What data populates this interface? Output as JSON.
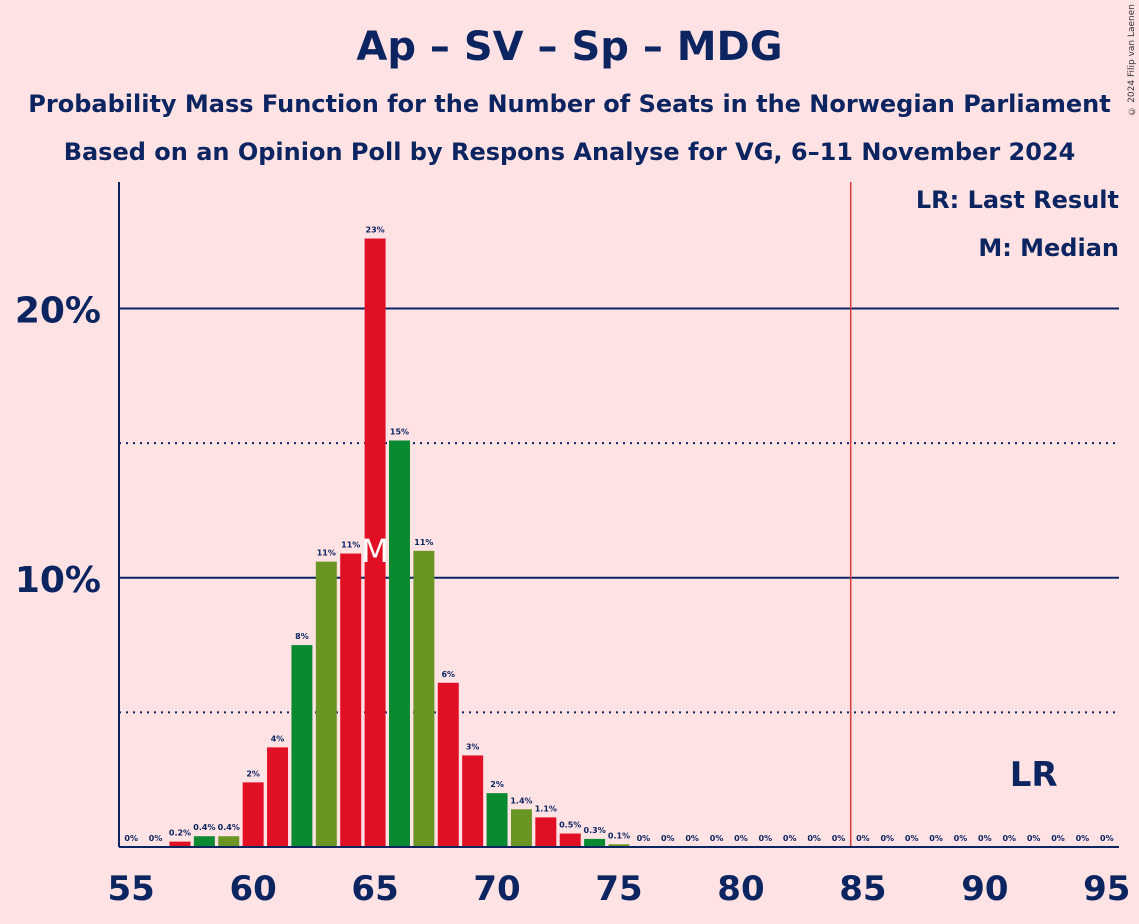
{
  "header": {
    "title": "Ap – SV – Sp – MDG",
    "subtitle1": "Probability Mass Function for the Number of Seats in the Norwegian Parliament",
    "subtitle2": "Based on an Opinion Poll by Respons Analyse for VG, 6–11 November 2024",
    "copyright": "© 2024 Filip van Laenen"
  },
  "legend": {
    "last_result": "LR: Last Result",
    "median": "M: Median"
  },
  "colors": {
    "background": "#ffe2e4",
    "text": "#0c2561",
    "red": "#e00f23",
    "green": "#098a30",
    "olive": "#6b9523",
    "majority_line": "#d43a3a"
  },
  "chart_data": {
    "type": "bar",
    "x": [
      55,
      56,
      57,
      58,
      59,
      60,
      61,
      62,
      63,
      64,
      65,
      66,
      67,
      68,
      69,
      70,
      71,
      72,
      73,
      74,
      75,
      76,
      77,
      78,
      79,
      80,
      81,
      82,
      83,
      84,
      85,
      86,
      87,
      88,
      89,
      90,
      91,
      92,
      93,
      94,
      95
    ],
    "values": [
      0,
      0,
      0.2,
      0.4,
      0.4,
      2.4,
      3.7,
      7.5,
      10.6,
      10.9,
      22.6,
      15.1,
      11.0,
      6.1,
      3.4,
      2.0,
      1.4,
      1.1,
      0.5,
      0.3,
      0.1,
      0,
      0,
      0,
      0,
      0,
      0,
      0,
      0,
      0,
      0,
      0,
      0,
      0,
      0,
      0,
      0,
      0,
      0,
      0,
      0
    ],
    "labels": [
      "0%",
      "0%",
      "0.2%",
      "0.4%",
      "0.4%",
      "2%",
      "4%",
      "8%",
      "11%",
      "11%",
      "23%",
      "15%",
      "11%",
      "6%",
      "3%",
      "2%",
      "1.4%",
      "1.1%",
      "0.5%",
      "0.3%",
      "0.1%",
      "0%",
      "0%",
      "0%",
      "0%",
      "0%",
      "0%",
      "0%",
      "0%",
      "0%",
      "0%",
      "0%",
      "0%",
      "0%",
      "0%",
      "0%",
      "0%",
      "0%",
      "0%",
      "0%",
      "0%"
    ],
    "bar_colors": [
      "red",
      "green",
      "red",
      "green",
      "olive",
      "red",
      "red",
      "green",
      "olive",
      "red",
      "red",
      "green",
      "olive",
      "red",
      "red",
      "green",
      "olive",
      "red",
      "red",
      "green",
      "olive",
      "red",
      "red",
      "green",
      "olive",
      "red",
      "red",
      "green",
      "olive",
      "red",
      "red",
      "green",
      "olive",
      "red",
      "red",
      "green",
      "olive",
      "red",
      "red",
      "green",
      "olive"
    ],
    "xticks": [
      55,
      60,
      65,
      70,
      75,
      80,
      85,
      90,
      95
    ],
    "xtick_labels": [
      "55",
      "60",
      "65",
      "70",
      "75",
      "80",
      "85",
      "90",
      "95"
    ],
    "yticks_major": [
      10,
      20
    ],
    "ytick_labels": [
      "10%",
      "20%"
    ],
    "yticks_minor": [
      5,
      15
    ],
    "ylim": [
      0,
      24.7
    ],
    "xlim": [
      54.5,
      95.5
    ],
    "median": 65,
    "median_label": "M",
    "last_result": 92,
    "last_result_label": "LR",
    "majority_line": 84.5
  }
}
